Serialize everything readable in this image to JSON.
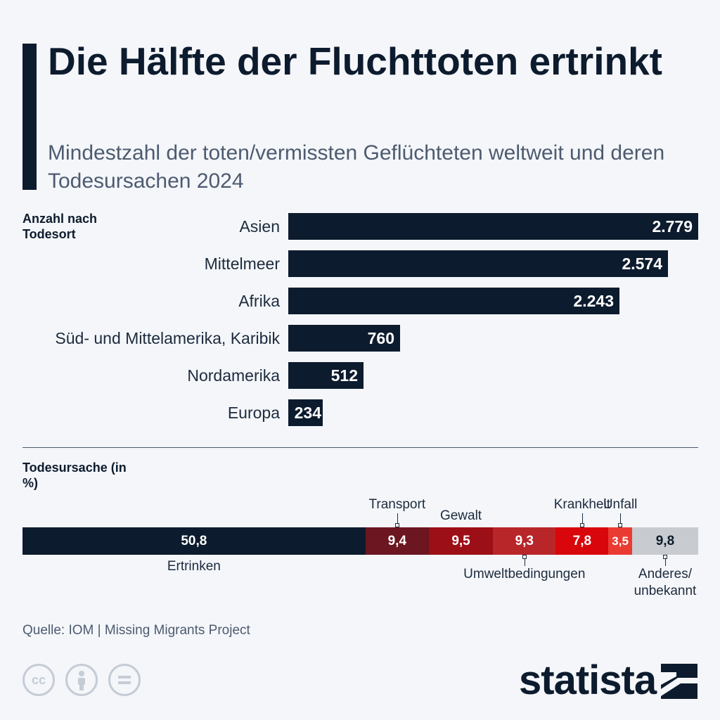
{
  "title": "Die Hälfte der Fluchttoten ertrinkt",
  "subtitle": "Mindestzahl der toten/vermissten Geflüchteten weltweit und deren Todesursachen 2024",
  "section_location": "Anzahl nach Todesort",
  "section_cause": "Todesursache (in %)",
  "source": "Quelle: IOM | Missing Migrants Project",
  "brand": "statista",
  "icons": [
    "cc-icon",
    "person-icon",
    "equals-icon",
    "statista-logo-icon"
  ],
  "colors": {
    "navy": "#0d1b2e",
    "transport": "#6b1620",
    "gewalt": "#9d0f17",
    "umwelt": "#b8262a",
    "krankheit": "#d9060b",
    "unfall": "#ea3b33",
    "anderes": "#c8cbcf"
  },
  "chart_data": [
    {
      "type": "bar",
      "orientation": "horizontal",
      "categories": [
        "Asien",
        "Mittelmeer",
        "Afrika",
        "Süd- und Mittelamerika, Karibik",
        "Nordamerika",
        "Europa"
      ],
      "values": [
        2779,
        2574,
        2243,
        760,
        512,
        234
      ],
      "value_labels": [
        "2.779",
        "2.574",
        "2.243",
        "760",
        "512",
        "234"
      ],
      "xlim": [
        0,
        2779
      ]
    },
    {
      "type": "bar",
      "orientation": "stacked-horizontal",
      "categories": [
        "Ertrinken",
        "Transport",
        "Gewalt",
        "Umweltbedingungen",
        "Krankheit",
        "Unfall",
        "Anderes/ unbekannt"
      ],
      "values": [
        50.8,
        9.4,
        9.5,
        9.3,
        7.8,
        3.5,
        9.8
      ],
      "value_labels": [
        "50,8",
        "9,4",
        "9,5",
        "9,3",
        "7,8",
        "3,5",
        "9,8"
      ],
      "label_positions": [
        "below",
        "above",
        "above",
        "below",
        "above",
        "above",
        "below"
      ]
    }
  ]
}
